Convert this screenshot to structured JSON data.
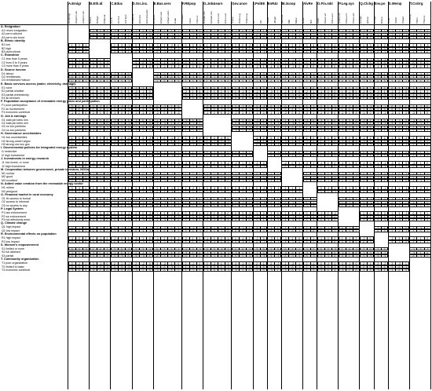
{
  "columns": [
    {
      "label": "A.Emigr",
      "subs": [
        "A1retmigr",
        "A2perm.wb",
        "A3perm.wb"
      ]
    },
    {
      "label": "B.Eth.Id",
      "subs": [
        "B1low",
        "B2high",
        "B3plural"
      ]
    },
    {
      "label": "C.Educ",
      "subs": [
        "C1>5",
        "C2 5-9",
        "C3>9yrs"
      ]
    },
    {
      "label": "D.Src.inc.",
      "subs": [
        "D1labour",
        "D2remit",
        "D3remit+labr"
      ]
    },
    {
      "label": "E.Bas.serv",
      "subs": [
        "E1none",
        "E2part.wat",
        "E3part.elect",
        "E4all"
      ]
    },
    {
      "label": "F.REpop",
      "subs": [
        "F1noacc",
        "F2ok",
        "F3econ"
      ]
    },
    {
      "label": "G.Job&earn",
      "subs": [
        "G1stab.min",
        "G2stab.min",
        "G3no.sec",
        "G4no.sec"
      ]
    },
    {
      "label": "Gov.unce",
      "subs": [
        "H1low",
        "H2strong",
        "H3strong"
      ]
    },
    {
      "label": "I.PolEE",
      "subs": [
        "I1r",
        "I2h"
      ]
    },
    {
      "label": "EnR&I",
      "subs": [
        "J1low",
        "J2high"
      ]
    },
    {
      "label": "M.3coop",
      "subs": [
        "M1none",
        "M2r",
        "M3ex"
      ]
    },
    {
      "label": "AlvRe",
      "subs": [
        "N1no",
        "N2r"
      ]
    },
    {
      "label": "O.Fin.mkt",
      "subs": [
        "O1fin",
        "O2acc.inf",
        "O3no.acc"
      ]
    },
    {
      "label": "P.Leg.sys",
      "subs": [
        "P1law.enf",
        "P2sw.enf",
        "P3not.enf"
      ]
    },
    {
      "label": "Q.Clchg",
      "subs": [
        "Q1high",
        "Q2low"
      ]
    },
    {
      "label": "Env.po",
      "subs": [
        "R1high",
        "R2low"
      ]
    },
    {
      "label": "S.Wemp",
      "subs": [
        "S1no",
        "S2full",
        "S3part"
      ]
    },
    {
      "label": "T.CoOrg",
      "subs": [
        "T1noorg",
        "T2lim",
        "T3econ"
      ]
    }
  ],
  "sections": [
    {
      "title": "A. Emigration",
      "rows": [
        "A1 return emigration",
        "A2 perm w/bond",
        "A3 perm w/o bond"
      ],
      "skip": 0
    },
    {
      "title": "B. Ethnic identity",
      "rows": [
        "B1 low",
        "B2 high",
        "B3 pluricultural"
      ],
      "skip": 1
    },
    {
      "title": "C. Education",
      "rows": [
        "C1 less than 5 years",
        "C2 from 5 to 9 years",
        "C3 more than 9 years"
      ],
      "skip": 2
    },
    {
      "title": "D. Source income",
      "rows": [
        "D1 labour",
        "D2 remittances",
        "D3 remittances+labour"
      ],
      "skip": 3
    },
    {
      "title": "E. Basic services access (water, electricity, drainage)",
      "rows": [
        "E1 none",
        "E2 partial w/water",
        "E3 partial w/electricity",
        "E4 all services"
      ],
      "skip": 4
    },
    {
      "title": "F. Population acceptance of renewable energy plans and participation",
      "rows": [
        "F1 poor participation",
        "F2 ok involvement",
        "F3 economic contributi"
      ],
      "skip": 5
    },
    {
      "title": "G. Job & earnings",
      "rows": [
        "G1 stab job betw min",
        "G2 stab job betw min",
        "G3 no sec job/betw",
        "G4 no sec job/betw"
      ],
      "skip": 6
    },
    {
      "title": "H. Governance uncertainties",
      "rows": [
        "H1 low uncertainties",
        "H2 strong uncert w/gov",
        "H3 strong unc w/o gov"
      ],
      "skip": 7
    },
    {
      "title": "I. Governmental policies for integrated energy system",
      "rows": [
        "I1 restrictive",
        "I2 high investment"
      ],
      "skip": 8
    },
    {
      "title": "J. Investments in energy research",
      "rows": [
        "J1 low invest. or none",
        "J2 high investment"
      ],
      "skip": 9
    },
    {
      "title": "M. Cooperation between government, private investors, NGOs",
      "rows": [
        "M1 no/low",
        "M2 good",
        "M3 excellent"
      ],
      "skip": 10
    },
    {
      "title": "N. Added value creation from the renewable energy sector",
      "rows": [
        "N1 no/low",
        "N2 yes/good"
      ],
      "skip": 11
    },
    {
      "title": "O. Financial market in rural economy",
      "rows": [
        "O1 fin access to formal",
        "O2 access to informal",
        "O3 no access to any"
      ],
      "skip": 12
    },
    {
      "title": "P. Legal System",
      "rows": [
        "P1 law enforcement",
        "P2 sw enforcement",
        "P3 not effectively enfor"
      ],
      "skip": 13
    },
    {
      "title": "Q. Climate change",
      "rows": [
        "Q1 high impact",
        "Q2 low impact"
      ],
      "skip": 14
    },
    {
      "title": "R. Environmental effects on population",
      "rows": [
        "R1 high impact",
        "R2 low impact"
      ],
      "skip": 15
    },
    {
      "title": "S. Women's empowerment",
      "rows": [
        "S1 limited or none",
        "S2 full attained",
        "S3 partial"
      ],
      "skip": 16
    },
    {
      "title": "T. Community organization",
      "rows": [
        "T1 poor organization",
        "T2 limited to basic",
        "T3 economic contributi"
      ],
      "skip": 17
    }
  ],
  "value_pattern": [
    "1",
    "-1",
    "2",
    "-2",
    "0",
    "3",
    "-3",
    "1",
    "0",
    "-1",
    "2",
    "0",
    "-2",
    "1",
    "3",
    "-1",
    "0",
    "2"
  ]
}
